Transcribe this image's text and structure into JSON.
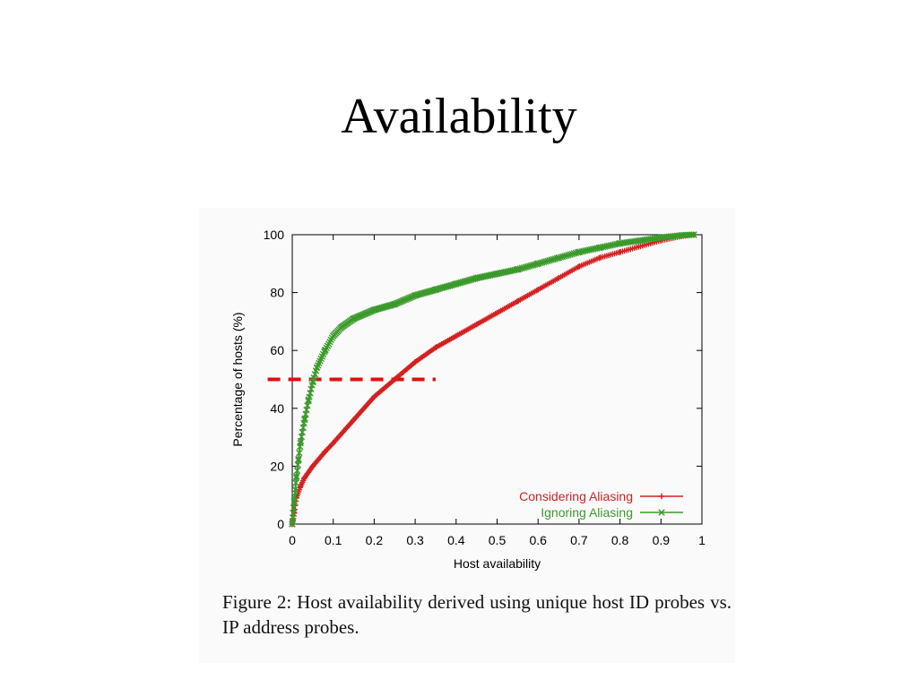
{
  "slide": {
    "title": "Availability",
    "caption": "Figure 2:  Host availability derived using unique host ID probes vs. IP address probes."
  },
  "chart_data": {
    "type": "line",
    "xlabel": "Host availability",
    "ylabel": "Percentage of hosts (%)",
    "xlim": [
      0,
      1
    ],
    "ylim": [
      0,
      100
    ],
    "xticks": [
      "0",
      "0.1",
      "0.2",
      "0.3",
      "0.4",
      "0.5",
      "0.6",
      "0.7",
      "0.8",
      "0.9",
      "1"
    ],
    "yticks": [
      "0",
      "20",
      "40",
      "60",
      "80",
      "100"
    ],
    "grid": false,
    "legend_position": "bottom-right",
    "series": [
      {
        "name": "Considering Aliasing",
        "color": "#d42020",
        "marker": "plus",
        "x": [
          0,
          0.005,
          0.01,
          0.02,
          0.03,
          0.05,
          0.08,
          0.1,
          0.15,
          0.2,
          0.25,
          0.3,
          0.35,
          0.4,
          0.45,
          0.5,
          0.55,
          0.6,
          0.65,
          0.7,
          0.75,
          0.8,
          0.85,
          0.9,
          0.95,
          0.98
        ],
        "y": [
          0,
          4,
          9,
          13,
          16,
          20,
          25,
          28,
          36,
          44,
          50,
          56,
          61,
          65,
          69,
          73,
          77,
          81,
          85,
          89,
          92,
          94,
          96,
          98,
          99.5,
          100
        ]
      },
      {
        "name": "Ignoring Aliasing",
        "color": "#3a9a2a",
        "marker": "cross",
        "x": [
          0,
          0.005,
          0.01,
          0.015,
          0.02,
          0.03,
          0.04,
          0.05,
          0.06,
          0.08,
          0.1,
          0.12,
          0.15,
          0.2,
          0.25,
          0.3,
          0.35,
          0.4,
          0.45,
          0.5,
          0.55,
          0.6,
          0.65,
          0.7,
          0.75,
          0.8,
          0.85,
          0.9,
          0.95,
          0.98
        ],
        "y": [
          0,
          8,
          16,
          22,
          28,
          36,
          43,
          49,
          54,
          60,
          65,
          68,
          71,
          74,
          76,
          79,
          81,
          83,
          85,
          86.5,
          88,
          90,
          92,
          94,
          95.5,
          97,
          98,
          99,
          99.8,
          100
        ]
      }
    ],
    "reference_line": {
      "color": "#e01010",
      "style": "dashed",
      "y": 50,
      "x": [
        -0.06,
        0.35
      ]
    }
  }
}
